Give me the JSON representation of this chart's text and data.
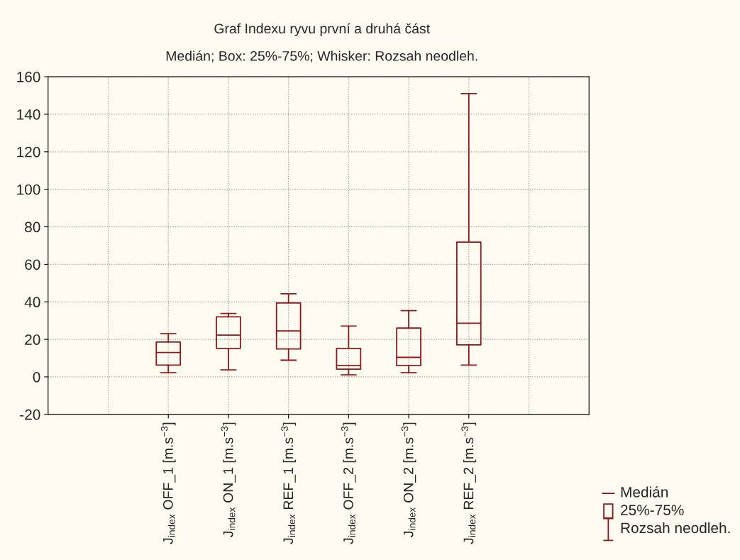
{
  "chart_data": {
    "type": "box",
    "title": "Graf Indexu ryvu první a druhá část",
    "subtitle": "Medián; Box: 25%-75%; Whisker: Rozsah neodleh.",
    "categories": [
      "J$_{index}$ OFF_1 [m.s$^{−3}$]",
      "J$_{index}$ ON_1 [m.s$^{−3}$]",
      "J$_{index}$ REF_1 [m.s$^{−3}$]",
      "J$_{index}$ OFF_2 [m.s$^{−3}$]",
      "J$_{index}$ ON_2 [m.s$^{−3}$]",
      "J$_{index}$ REF_2 [m.s$^{−3}$]"
    ],
    "series": [
      {
        "color": "#8b1a1a",
        "boxes": [
          {
            "low": 2.2,
            "q1": 6.3,
            "median": 13,
            "q3": 18.6,
            "high": 23
          },
          {
            "low": 3.7,
            "q1": 15.2,
            "median": 22.3,
            "q3": 32,
            "high": 33.8
          },
          {
            "low": 8.9,
            "q1": 14.9,
            "median": 24.5,
            "q3": 39.4,
            "high": 44.3
          },
          {
            "low": 1.1,
            "q1": 4.1,
            "median": 6,
            "q3": 15.2,
            "high": 27.1
          },
          {
            "low": 2.2,
            "q1": 6,
            "median": 10.4,
            "q3": 26,
            "high": 35.3
          },
          {
            "low": 6.3,
            "q1": 17.1,
            "median": 28.6,
            "q3": 71.8,
            "high": 151
          }
        ]
      }
    ],
    "ylim": [
      -20,
      160
    ],
    "yticks": [
      -20,
      0,
      20,
      40,
      60,
      80,
      100,
      120,
      140,
      160
    ],
    "grid": true,
    "annotations": [
      "Medián",
      "25%-75%",
      "Rozsah neodleh."
    ]
  }
}
